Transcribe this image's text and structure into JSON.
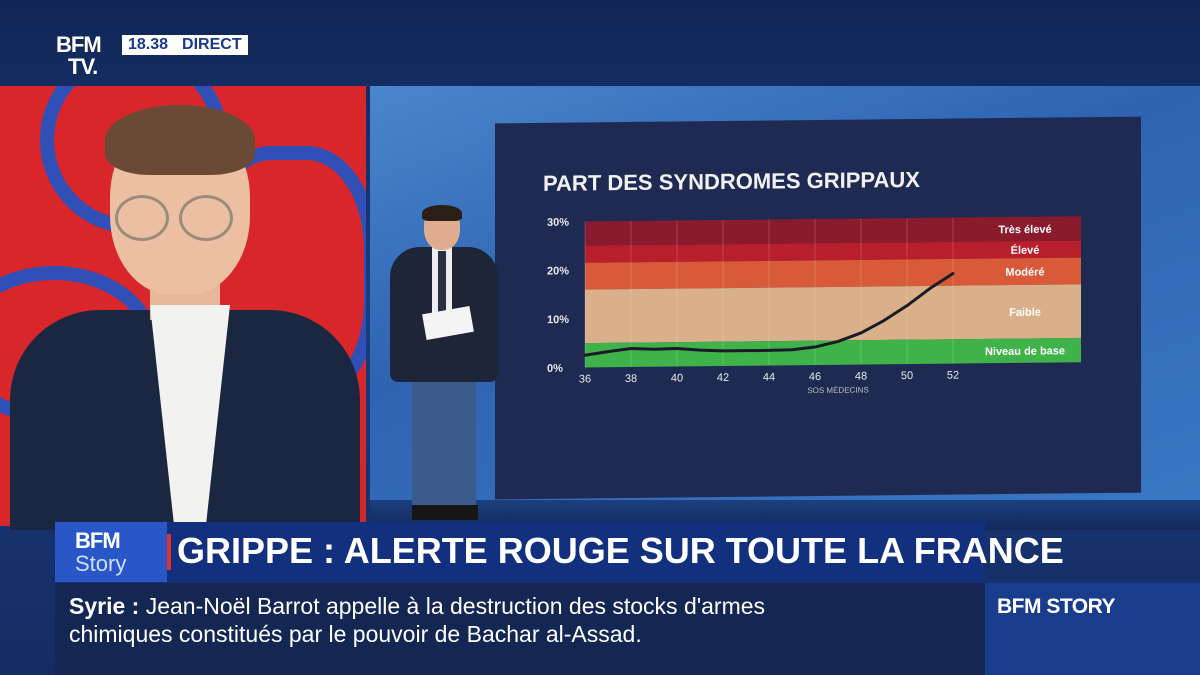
{
  "channel": {
    "logo_line1": "BFM",
    "logo_line2": "TV.",
    "time": "18.38",
    "live_label": "DIRECT"
  },
  "colors": {
    "band_tres_eleve": "#8a1b2c",
    "band_eleve": "#b81e2c",
    "band_modere": "#d95a38",
    "band_faible": "#d9b08a",
    "band_base": "#3fb34a",
    "curve": "#1b1b28"
  },
  "chart_data": {
    "type": "line",
    "title": "PART DES SYNDROMES GRIPPAUX",
    "source": "SOS MÉDECINS",
    "xlim": [
      36,
      52
    ],
    "ylim": [
      0,
      30
    ],
    "x_ticks": [
      "36",
      "38",
      "40",
      "42",
      "44",
      "46",
      "48",
      "50",
      "52"
    ],
    "y_ticks": [
      "30%",
      "20%",
      "10%",
      "0%"
    ],
    "y_tick_values": [
      30,
      20,
      10,
      0
    ],
    "bands": [
      {
        "label": "Très élevé",
        "from": 25,
        "to": 30,
        "color": "#8a1b2c"
      },
      {
        "label": "Élevé",
        "from": 21.5,
        "to": 25,
        "color": "#b81e2c"
      },
      {
        "label": "Modéré",
        "from": 16,
        "to": 21.5,
        "color": "#d95a38"
      },
      {
        "label": "Faible",
        "from": 5,
        "to": 16,
        "color": "#d9b08a"
      },
      {
        "label": "Niveau de base",
        "from": 0,
        "to": 5,
        "color": "#3fb34a"
      }
    ],
    "series": [
      {
        "x": [
          36,
          37,
          38,
          39,
          40,
          41,
          42,
          43,
          44,
          45,
          46,
          47,
          48,
          49,
          50,
          51,
          52
        ],
        "values": [
          2.5,
          3.2,
          3.8,
          3.6,
          3.7,
          3.3,
          3.1,
          3.1,
          3.1,
          3.2,
          3.7,
          4.8,
          6.5,
          9.0,
          12.0,
          15.5,
          18.5
        ]
      }
    ]
  },
  "banner": {
    "brand_line1": "BFM",
    "brand_line2": "Story",
    "headline": "GRIPPE : ALERTE ROUGE SUR TOUTE LA FRANCE"
  },
  "ticker": {
    "topic": "Syrie",
    "separator": ":",
    "line1": "Jean-Noël Barrot appelle à la destruction des stocks d'armes",
    "line2": "chimiques constitués par le pouvoir de Bachar al-Assad."
  },
  "program": {
    "label": "BFM STORY"
  }
}
